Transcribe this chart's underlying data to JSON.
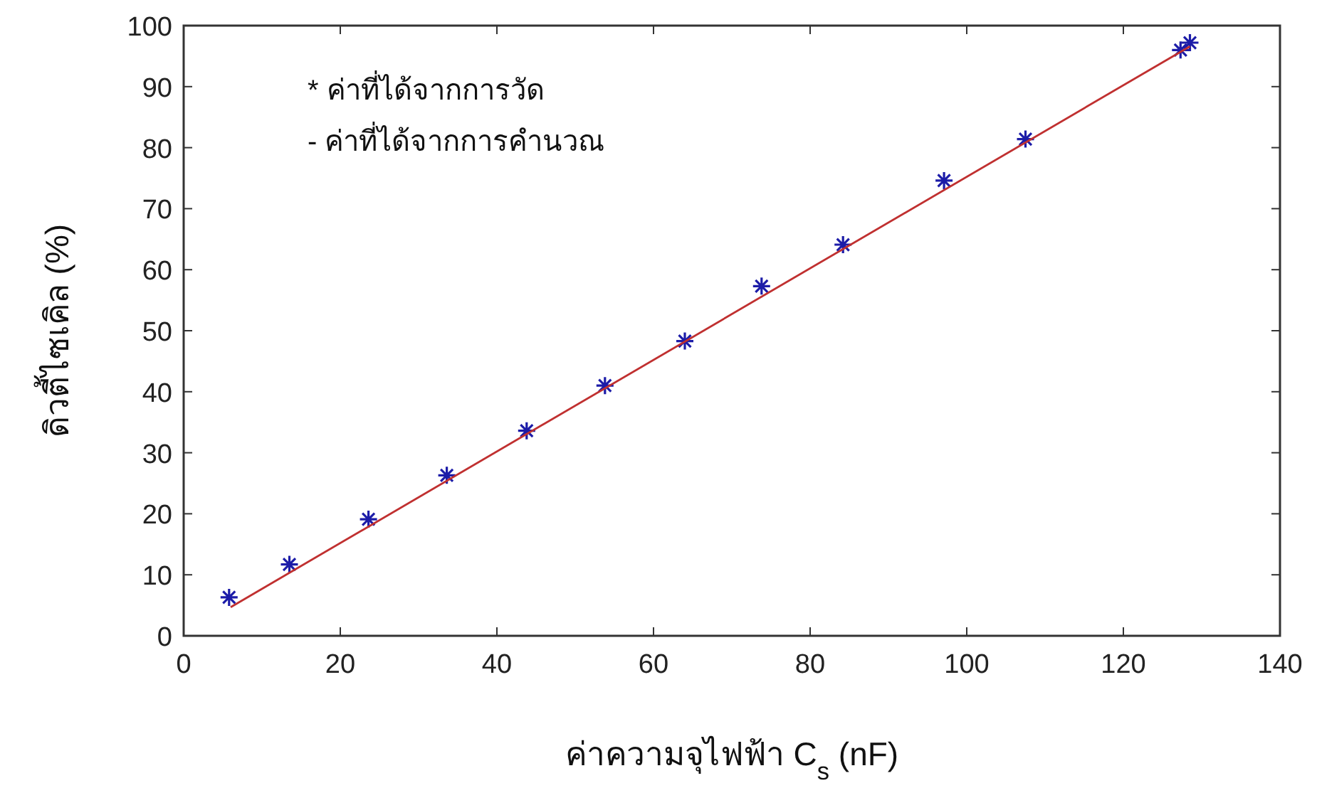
{
  "chart_data": {
    "type": "scatter",
    "xlabel": "ค่าความจุไฟฟ้า C$_{s}$ (nF)",
    "ylabel": "ดิวตี้ไซเคิล (%)",
    "annotations": [
      "* ค่าที่ได้จากการวัด",
      "- ค่าที่ได้จากการคำนวณ"
    ],
    "series": [
      {
        "color": "#1c1ca8",
        "marker": "cross",
        "x": [
          5.8,
          13.5,
          23.6,
          33.6,
          43.8,
          53.8,
          64.0,
          73.8,
          84.2,
          97.1,
          107.5,
          127.3,
          128.5
        ],
        "values": [
          6.3,
          11.7,
          19.1,
          26.3,
          33.6,
          41.0,
          48.3,
          57.3,
          64.1,
          74.6,
          81.4,
          96.0,
          97.2
        ]
      },
      {
        "type": "line",
        "color": "#c03030",
        "marker": "none",
        "line_style": "solid",
        "x": [
          6,
          128.5
        ],
        "values": [
          4.7,
          96.6
        ]
      }
    ],
    "xlim": [
      0,
      140
    ],
    "xticks": [
      0,
      20,
      40,
      60,
      80,
      100,
      120,
      140
    ],
    "ylim": [
      0,
      100
    ],
    "yticks": [
      0,
      10,
      20,
      30,
      40,
      50,
      60,
      70,
      80,
      90,
      100
    ],
    "grid": false
  }
}
